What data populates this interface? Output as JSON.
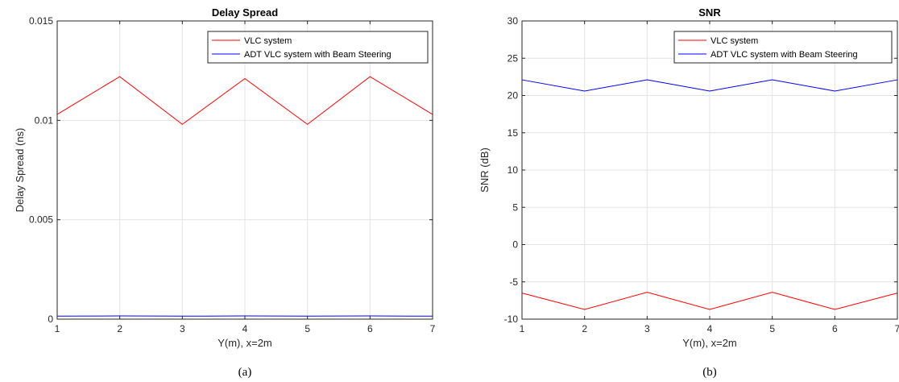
{
  "chart_data": [
    {
      "type": "line",
      "title": "Delay Spread",
      "xlabel": "Y(m), x=2m",
      "ylabel": "Delay Spread (ns)",
      "caption": "(a)",
      "xlim": [
        1,
        7
      ],
      "ylim": [
        0,
        0.015
      ],
      "x": [
        1,
        2,
        3,
        4,
        5,
        6,
        7
      ],
      "xticks": [
        1,
        2,
        3,
        4,
        5,
        6,
        7
      ],
      "yticks": [
        0,
        0.005,
        0.01,
        0.015
      ],
      "ytick_labels": [
        "0",
        "0.005",
        "0.01",
        "0.015"
      ],
      "grid": true,
      "legend_position": "top-right",
      "series": [
        {
          "name": "VLC system",
          "color": "#ff0000",
          "values": [
            0.0103,
            0.0122,
            0.0098,
            0.0121,
            0.0098,
            0.0122,
            0.0103
          ]
        },
        {
          "name": "ADT VLC system with Beam Steering",
          "color": "#0000ff",
          "values": [
            0.00015,
            0.00016,
            0.00015,
            0.00016,
            0.00015,
            0.00016,
            0.00015
          ]
        }
      ]
    },
    {
      "type": "line",
      "title": "SNR",
      "xlabel": "Y(m), x=2m",
      "ylabel": "SNR (dB)",
      "caption": "(b)",
      "xlim": [
        1,
        7
      ],
      "ylim": [
        -10,
        30
      ],
      "x": [
        1,
        2,
        3,
        4,
        5,
        6,
        7
      ],
      "xticks": [
        1,
        2,
        3,
        4,
        5,
        6,
        7
      ],
      "yticks": [
        -10,
        -5,
        0,
        5,
        10,
        15,
        20,
        25,
        30
      ],
      "ytick_labels": [
        "-10",
        "-5",
        "0",
        "5",
        "10",
        "15",
        "20",
        "25",
        "30"
      ],
      "grid": true,
      "legend_position": "top-right",
      "series": [
        {
          "name": "VLC system",
          "color": "#ff0000",
          "values": [
            -6.5,
            -8.7,
            -6.4,
            -8.7,
            -6.4,
            -8.7,
            -6.5
          ]
        },
        {
          "name": "ADT VLC system with Beam Steering",
          "color": "#0000ff",
          "values": [
            22.1,
            20.6,
            22.1,
            20.6,
            22.1,
            20.6,
            22.1
          ]
        }
      ]
    }
  ]
}
